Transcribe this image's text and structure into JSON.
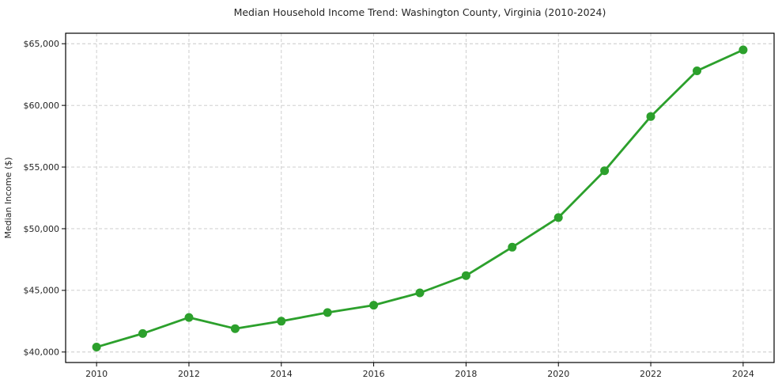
{
  "chart_data": {
    "type": "line",
    "title": "Median Household Income Trend: Washington County, Virginia (2010-2024)",
    "xlabel": "",
    "ylabel": "Median Income ($)",
    "x": [
      2010,
      2011,
      2012,
      2013,
      2014,
      2015,
      2016,
      2017,
      2018,
      2019,
      2020,
      2021,
      2022,
      2023,
      2024
    ],
    "series": [
      {
        "name": "Median Household Income",
        "values": [
          40400,
          41500,
          42800,
          41900,
          42500,
          43200,
          43800,
          44800,
          46200,
          48500,
          50900,
          54700,
          59100,
          62800,
          64500
        ],
        "color": "#2ca02c",
        "marker": "circle"
      }
    ],
    "x_ticks": [
      {
        "value": 2010,
        "label": "2010"
      },
      {
        "value": 2012,
        "label": "2012"
      },
      {
        "value": 2014,
        "label": "2014"
      },
      {
        "value": 2016,
        "label": "2016"
      },
      {
        "value": 2018,
        "label": "2018"
      },
      {
        "value": 2020,
        "label": "2020"
      },
      {
        "value": 2022,
        "label": "2022"
      },
      {
        "value": 2024,
        "label": "2024"
      }
    ],
    "y_ticks": [
      {
        "value": 40000,
        "label": "$40,000"
      },
      {
        "value": 45000,
        "label": "$45,000"
      },
      {
        "value": 50000,
        "label": "$50,000"
      },
      {
        "value": 55000,
        "label": "$55,000"
      },
      {
        "value": 60000,
        "label": "$60,000"
      },
      {
        "value": 65000,
        "label": "$65,000"
      }
    ],
    "xlim": [
      2009.33,
      2024.67
    ],
    "ylim": [
      39150,
      65850
    ],
    "grid": true,
    "legend_position": "none",
    "style": {
      "line_color": "#2ca02c",
      "marker_color": "#2ca02c",
      "grid_color": "#c8c8c8",
      "spine_color": "#000000",
      "text_color": "#262626",
      "background": "#ffffff"
    }
  }
}
